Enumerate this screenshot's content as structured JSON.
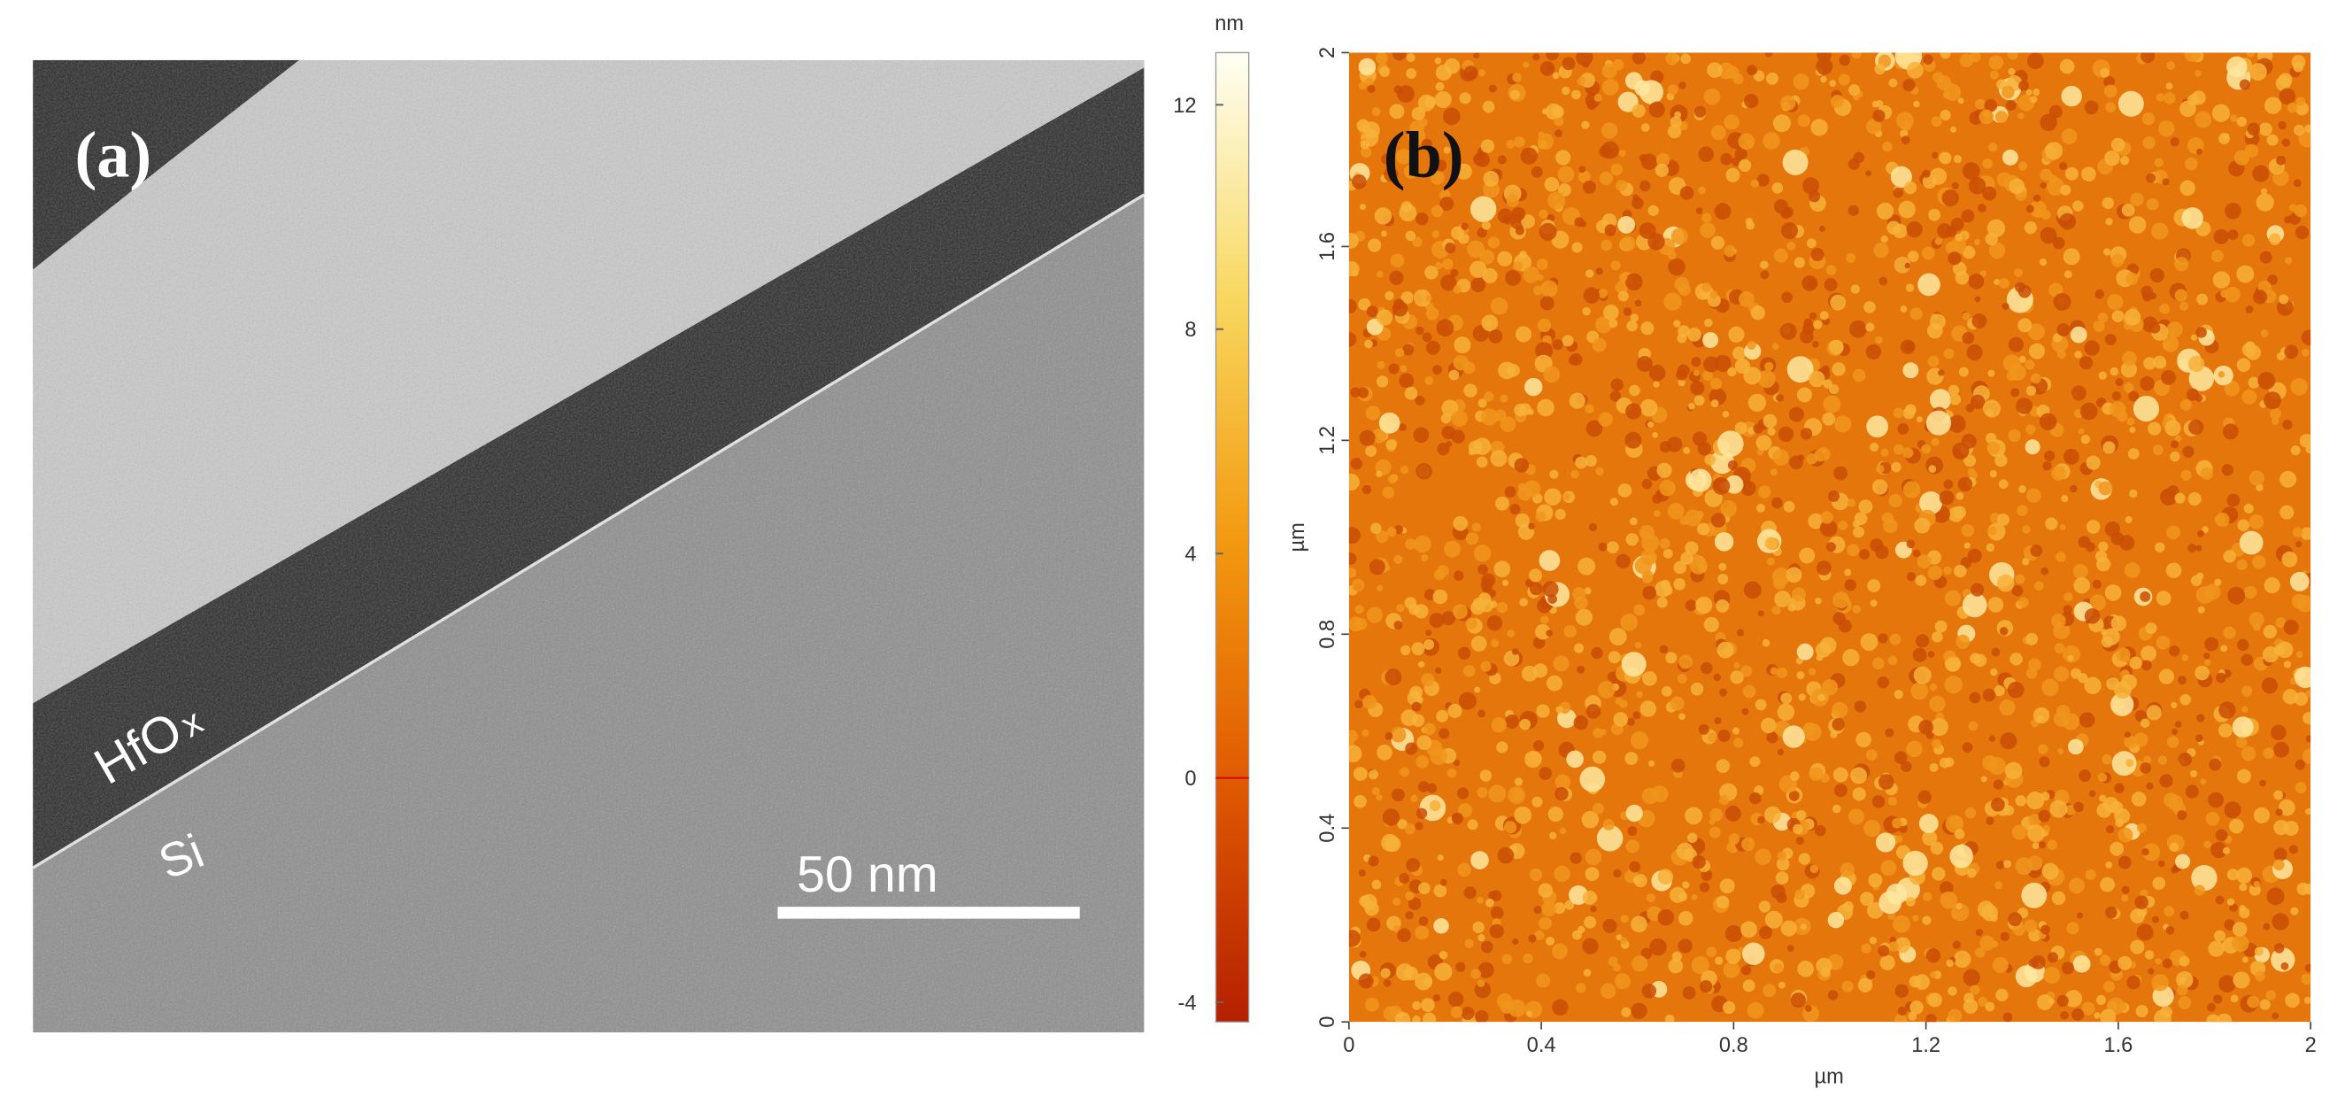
{
  "panel_a": {
    "label": "(a)",
    "layer_label": "HfO",
    "layer_subscript": "x",
    "substrate_label": "Si",
    "scale_bar": "50 nm"
  },
  "colorbar": {
    "unit": "nm",
    "lim": [
      -4.35,
      12.93
    ],
    "ticks": [
      -4,
      0,
      4,
      8,
      12
    ]
  },
  "panel_b": {
    "label": "(b)",
    "xlabel": "µm",
    "ylabel": "µm",
    "xlim": [
      0,
      2
    ],
    "ylim": [
      0,
      2
    ],
    "xticks": [
      0,
      0.4,
      0.8,
      1.2,
      1.6,
      2
    ],
    "yticks": [
      0,
      0.4,
      0.8,
      1.2,
      1.6,
      2
    ]
  }
}
